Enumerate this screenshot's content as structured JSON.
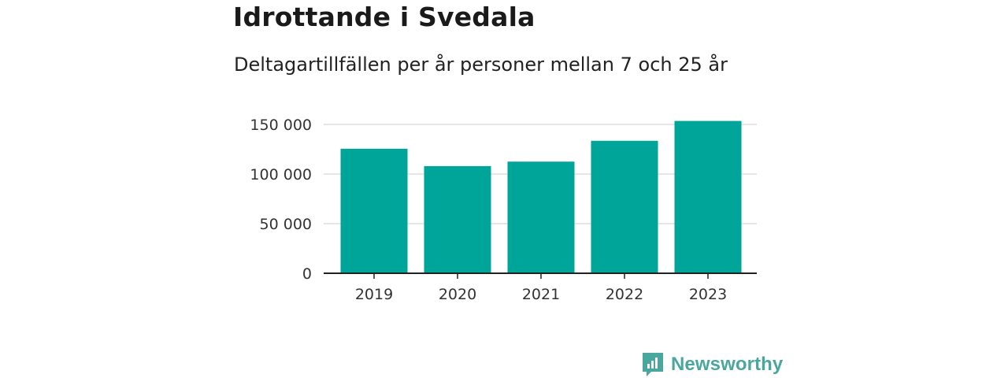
{
  "header": {
    "title": "Idrottande i Svedala",
    "subtitle": "Deltagartillfällen per år personer mellan 7 och 25 år"
  },
  "brand": {
    "name": "Newsworthy",
    "color": "#4aa79d"
  },
  "colors": {
    "bar": "#00a59a",
    "gridline": "#dddddd",
    "axis": "#222222"
  },
  "chart_data": {
    "type": "bar",
    "categories": [
      "2019",
      "2020",
      "2021",
      "2022",
      "2023"
    ],
    "values": [
      125500,
      108000,
      112500,
      133500,
      153500
    ],
    "ylim": [
      0,
      150000
    ],
    "yticks": [
      0,
      50000,
      100000,
      150000
    ],
    "ytick_labels": [
      "0",
      "50 000",
      "100 000",
      "150 000"
    ],
    "title": "",
    "xlabel": "",
    "ylabel": "",
    "grid": "horizontal",
    "legend": "none"
  }
}
